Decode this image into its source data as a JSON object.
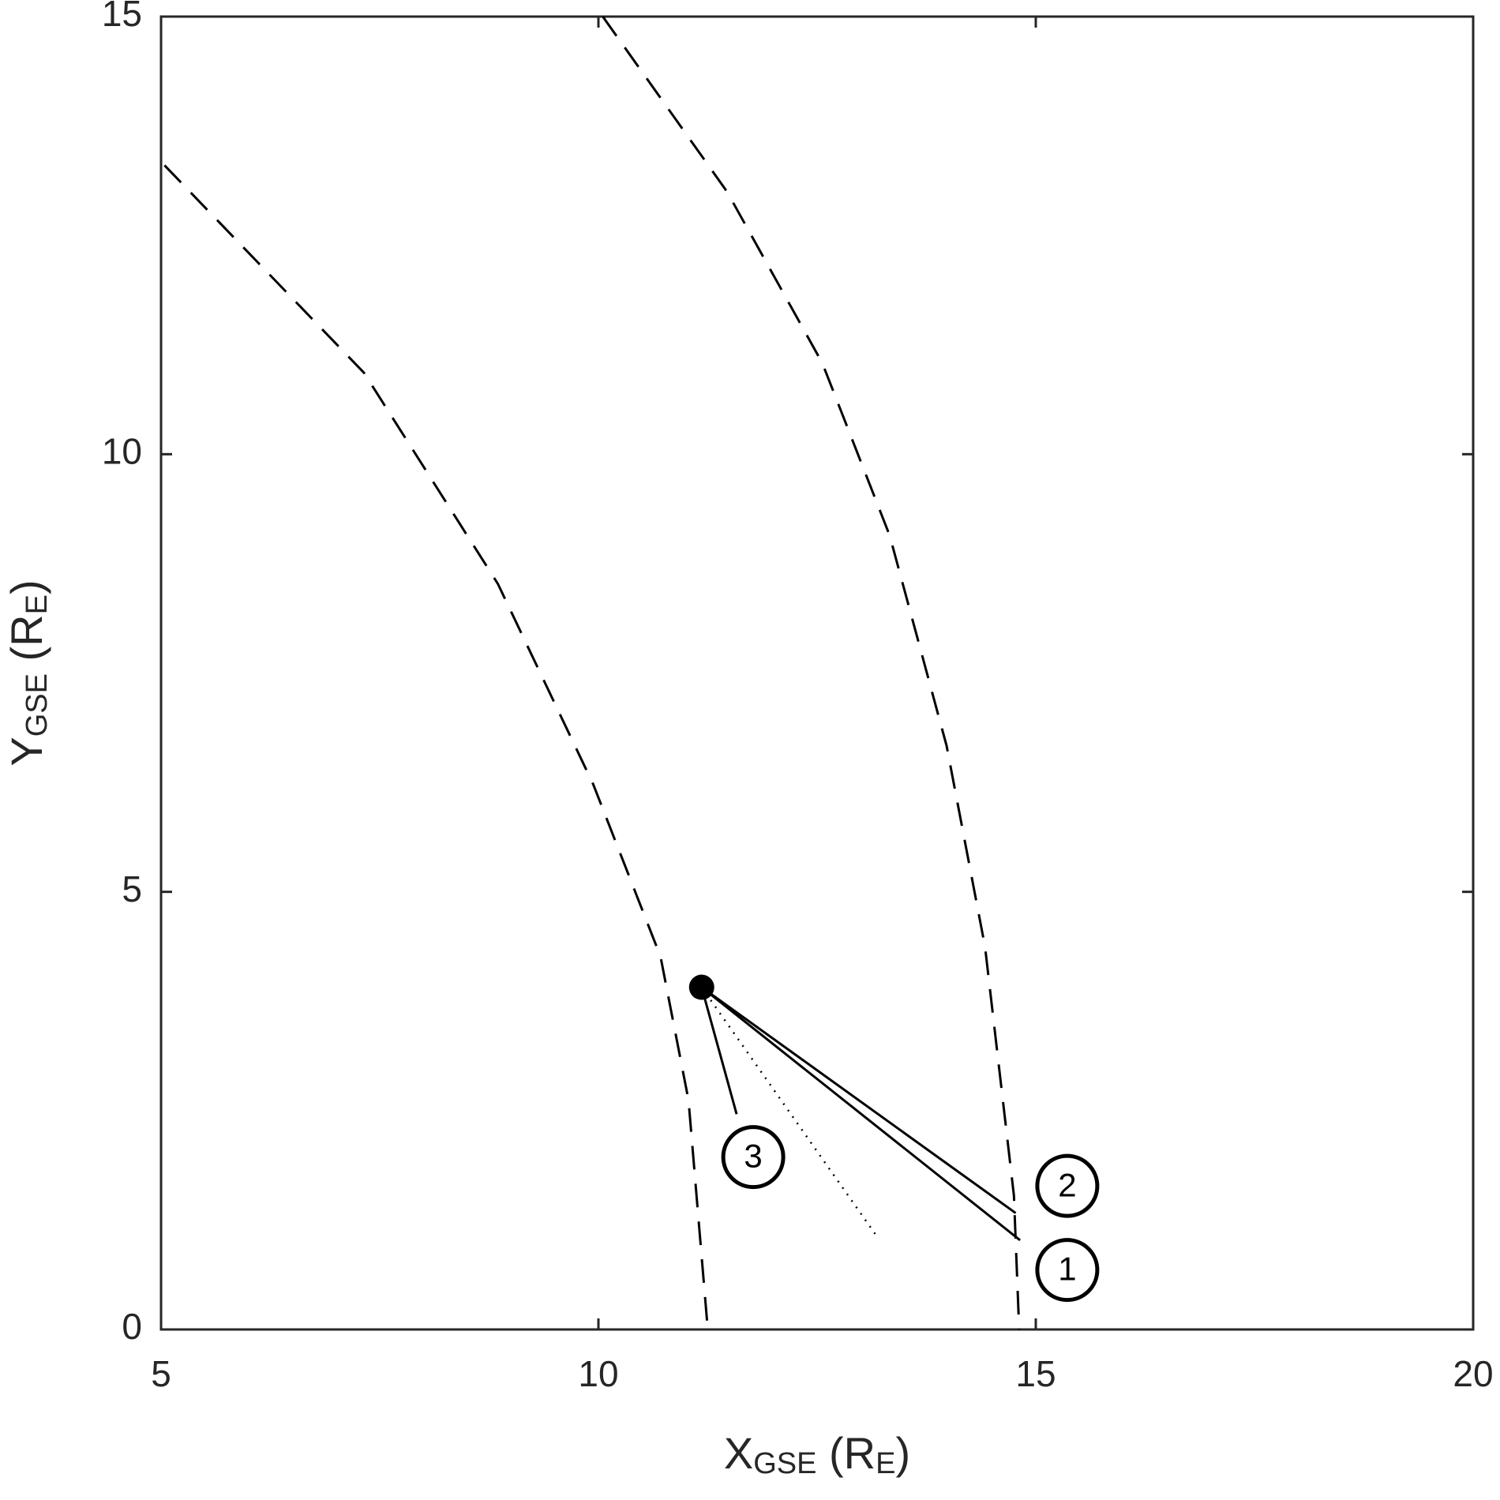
{
  "chart_data": {
    "type": "line",
    "xlabel": [
      "X",
      "GSE",
      " (R",
      "E",
      ")"
    ],
    "ylabel": [
      "Y",
      "GSE",
      " (R",
      "E",
      ")"
    ],
    "xlim": [
      5,
      20
    ],
    "ylim": [
      0,
      15
    ],
    "xticks": [
      5,
      10,
      15,
      20
    ],
    "yticks": [
      0,
      5,
      10,
      15
    ],
    "series": [
      {
        "color": "#000000",
        "dash": "dashed",
        "x": [
          5.04,
          7.32,
          8.85,
          9.94,
          10.71,
          11.03,
          11.25
        ],
        "values": [
          13.3,
          10.93,
          8.52,
          6.23,
          4.26,
          2.62,
          0
        ]
      },
      {
        "color": "#000000",
        "dash": "dashed",
        "x": [
          10.05,
          11.47,
          12.56,
          13.33,
          13.98,
          14.42,
          14.75,
          14.81
        ],
        "values": [
          15,
          13.0,
          11.04,
          9.07,
          6.67,
          4.37,
          1.53,
          0
        ]
      },
      {
        "color": "#000000",
        "dash": "solid",
        "x": [
          11.18,
          14.82
        ],
        "values": [
          3.91,
          1.02
        ]
      },
      {
        "color": "#000000",
        "dash": "solid",
        "x": [
          11.18,
          14.77
        ],
        "values": [
          3.91,
          1.33
        ]
      },
      {
        "color": "#000000",
        "dash": "solid",
        "x": [
          11.18,
          11.58
        ],
        "values": [
          3.91,
          2.46
        ]
      },
      {
        "color": "#000000",
        "dash": "dotted",
        "x": [
          11.18,
          13.2
        ],
        "values": [
          3.91,
          1.04
        ]
      },
      {
        "color": "#000000",
        "dash": "marker",
        "x": [
          11.18
        ],
        "values": [
          3.91
        ]
      }
    ],
    "annotations": [
      {
        "text": "1",
        "x": 15.36,
        "y": 0.68
      },
      {
        "text": "2",
        "x": 15.36,
        "y": 1.64
      },
      {
        "text": "3",
        "x": 11.77,
        "y": 1.97
      }
    ]
  }
}
